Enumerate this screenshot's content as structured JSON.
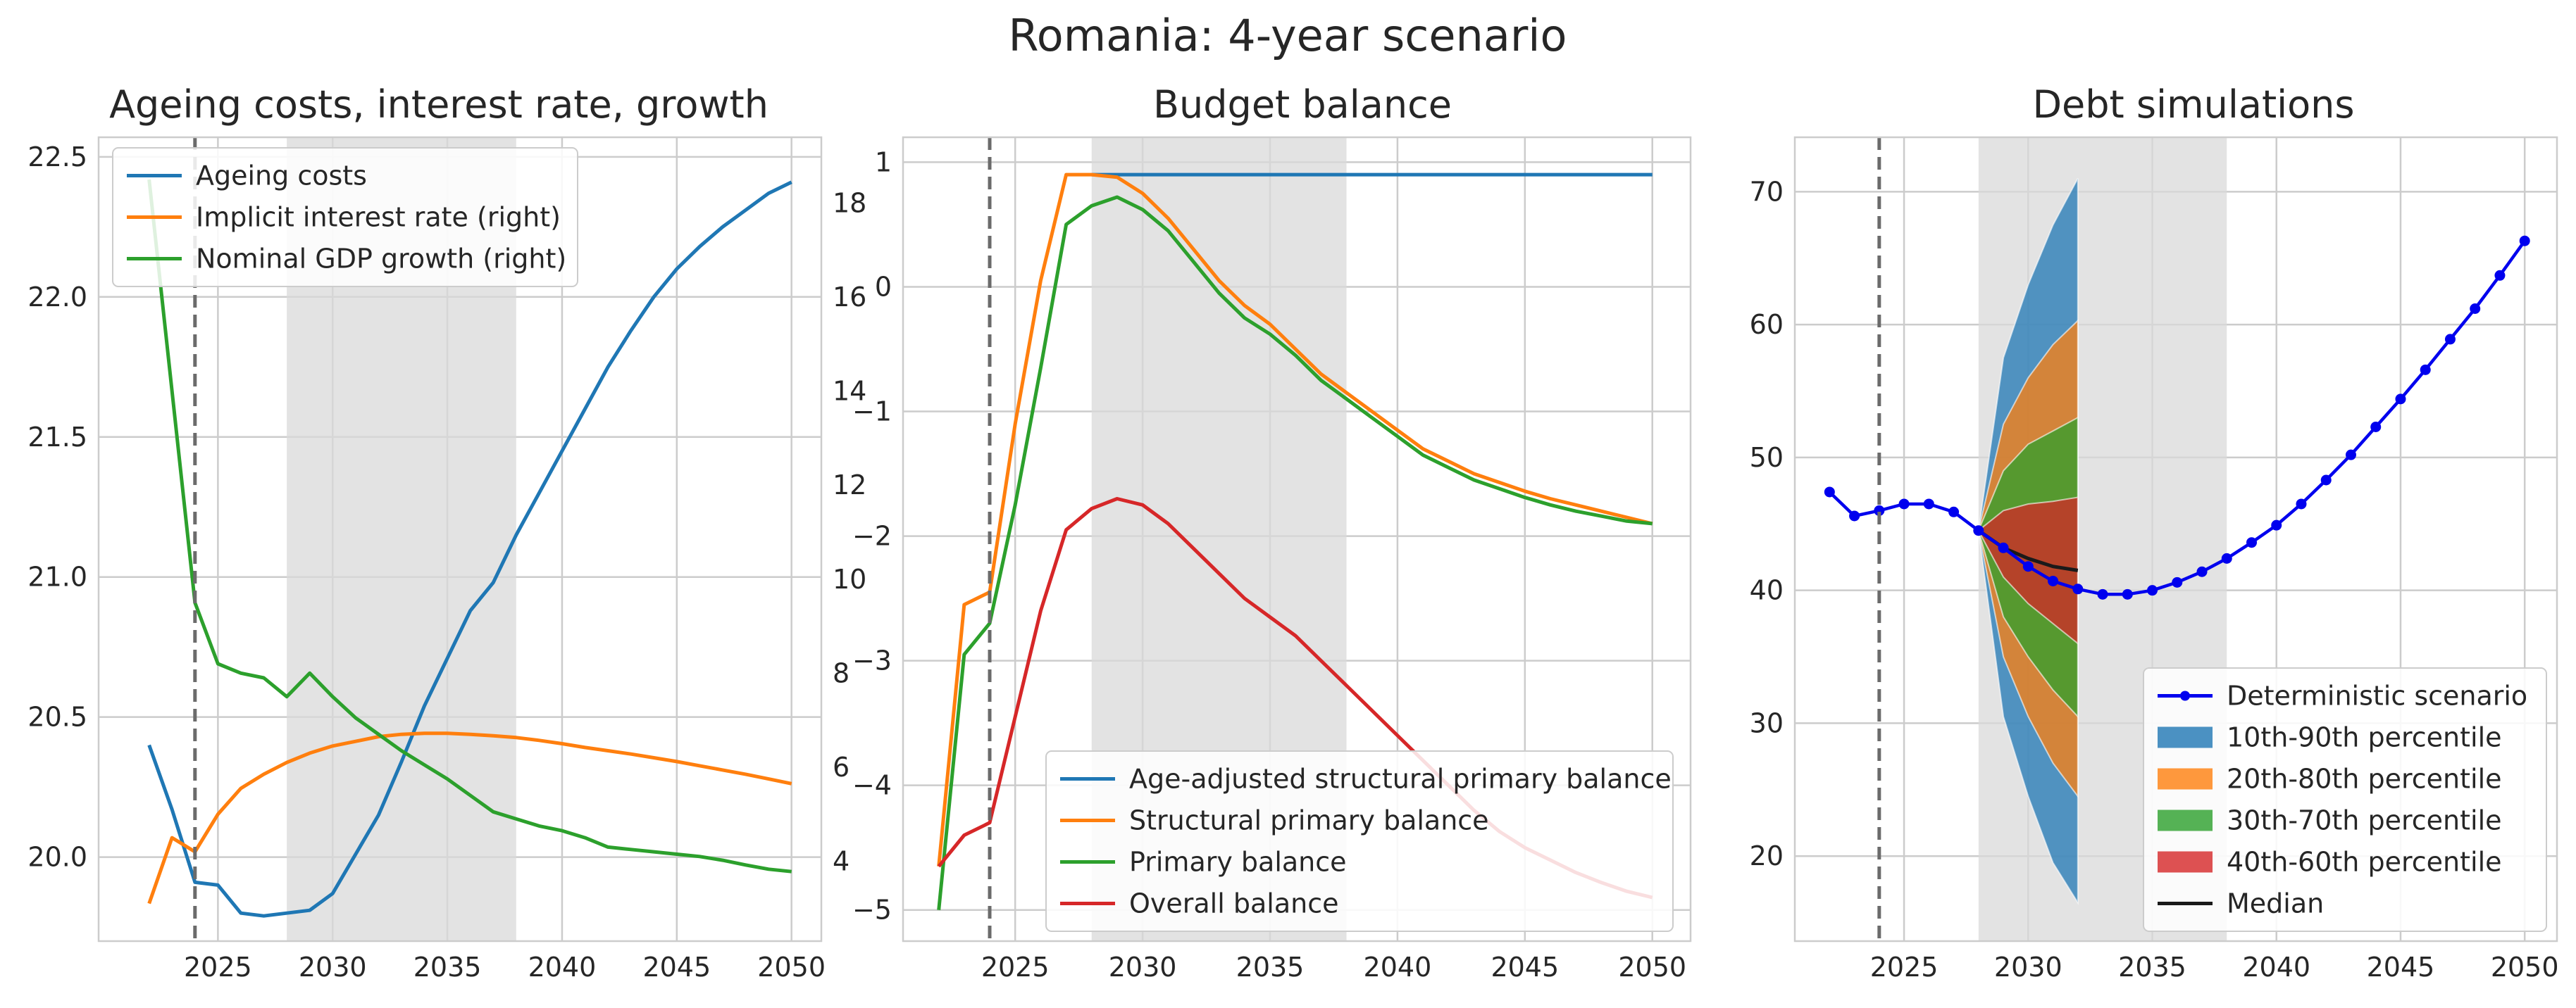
{
  "title": "Romania: 4-year scenario",
  "colors": {
    "blue": "#1f77b4",
    "orange": "#ff7f0e",
    "green": "#2ca02c",
    "red": "#d62728",
    "black": "#1a1a1a",
    "det": "#0000ee",
    "shade": "#d9d9d9",
    "vline": "#6b6b6b"
  },
  "chart_data": [
    {
      "type": "line",
      "title": "Ageing costs, interest rate, growth",
      "x": [
        2022,
        2023,
        2024,
        2025,
        2026,
        2027,
        2028,
        2029,
        2030,
        2031,
        2032,
        2033,
        2034,
        2035,
        2036,
        2037,
        2038,
        2039,
        2040,
        2041,
        2042,
        2043,
        2044,
        2045,
        2046,
        2047,
        2048,
        2049,
        2050
      ],
      "xlim": [
        2019.8,
        2051.3
      ],
      "xticks": [
        2025,
        2030,
        2035,
        2040,
        2045,
        2050
      ],
      "ylim": [
        19.7,
        22.57
      ],
      "yticks": [
        20.0,
        20.5,
        21.0,
        21.5,
        22.0,
        22.5
      ],
      "ytick_labels": [
        "20.0",
        "20.5",
        "21.0",
        "21.5",
        "22.0",
        "22.5"
      ],
      "y2lim": [
        2.3,
        19.4
      ],
      "y2ticks": [
        4,
        6,
        8,
        10,
        12,
        14,
        16,
        18
      ],
      "shade": [
        2028,
        2038
      ],
      "vline": 2024,
      "grid": true,
      "legend_position": "upper-left",
      "series": [
        {
          "name": "Ageing costs",
          "axis": "left",
          "color": "#1f77b4",
          "values": [
            20.4,
            20.17,
            19.91,
            19.9,
            19.8,
            19.79,
            19.8,
            19.81,
            19.87,
            20.01,
            20.15,
            20.34,
            20.54,
            20.71,
            20.88,
            20.98,
            21.15,
            21.3,
            21.45,
            21.6,
            21.75,
            21.88,
            22.0,
            22.1,
            22.18,
            22.25,
            22.31,
            22.37,
            22.41
          ]
        },
        {
          "name": "Implicit interest rate (right)",
          "axis": "right",
          "color": "#ff7f0e",
          "values": [
            3.1,
            4.5,
            4.2,
            5.0,
            5.55,
            5.85,
            6.1,
            6.3,
            6.45,
            6.55,
            6.65,
            6.7,
            6.72,
            6.72,
            6.7,
            6.67,
            6.63,
            6.57,
            6.5,
            6.42,
            6.35,
            6.28,
            6.2,
            6.12,
            6.03,
            5.94,
            5.85,
            5.75,
            5.65
          ]
        },
        {
          "name": "Nominal GDP growth (right)",
          "axis": "right",
          "color": "#2ca02c",
          "values": [
            18.5,
            14.0,
            9.5,
            8.2,
            8.0,
            7.9,
            7.5,
            8.0,
            7.5,
            7.05,
            6.7,
            6.35,
            6.05,
            5.75,
            5.4,
            5.05,
            4.9,
            4.75,
            4.65,
            4.5,
            4.3,
            4.25,
            4.2,
            4.15,
            4.1,
            4.02,
            3.92,
            3.83,
            3.78
          ]
        }
      ]
    },
    {
      "type": "line",
      "title": "Budget balance",
      "x": [
        2022,
        2023,
        2024,
        2025,
        2026,
        2027,
        2028,
        2029,
        2030,
        2031,
        2032,
        2033,
        2034,
        2035,
        2036,
        2037,
        2038,
        2039,
        2040,
        2041,
        2042,
        2043,
        2044,
        2045,
        2046,
        2047,
        2048,
        2049,
        2050
      ],
      "xlim": [
        2020.6,
        2051.5
      ],
      "xticks": [
        2025,
        2030,
        2035,
        2040,
        2045,
        2050
      ],
      "ylim": [
        -5.25,
        1.2
      ],
      "yticks": [
        -5,
        -4,
        -3,
        -2,
        -1,
        0,
        1
      ],
      "ytick_labels": [
        "−5",
        "−4",
        "−3",
        "−2",
        "−1",
        "0",
        "1"
      ],
      "shade": [
        2028,
        2038
      ],
      "vline": 2024,
      "grid": true,
      "legend_position": "lower-right",
      "series": [
        {
          "name": "Age-adjusted structural primary balance",
          "color": "#1f77b4",
          "values": [
            null,
            null,
            null,
            null,
            null,
            null,
            0.9,
            0.9,
            0.9,
            0.9,
            0.9,
            0.9,
            0.9,
            0.9,
            0.9,
            0.9,
            0.9,
            0.9,
            0.9,
            0.9,
            0.9,
            0.9,
            0.9,
            0.9,
            0.9,
            0.9,
            0.9,
            0.9,
            0.9
          ]
        },
        {
          "name": "Structural primary balance",
          "color": "#ff7f0e",
          "values": [
            -4.65,
            -2.55,
            -2.45,
            -1.1,
            0.05,
            0.9,
            0.9,
            0.88,
            0.75,
            0.55,
            0.3,
            0.05,
            -0.15,
            -0.3,
            -0.5,
            -0.7,
            -0.85,
            -1.0,
            -1.15,
            -1.3,
            -1.4,
            -1.5,
            -1.57,
            -1.64,
            -1.7,
            -1.75,
            -1.8,
            -1.85,
            -1.9
          ]
        },
        {
          "name": "Primary balance",
          "color": "#2ca02c",
          "values": [
            -5.0,
            -2.95,
            -2.7,
            -1.75,
            -0.65,
            0.5,
            0.65,
            0.72,
            0.62,
            0.45,
            0.2,
            -0.05,
            -0.25,
            -0.38,
            -0.55,
            -0.75,
            -0.9,
            -1.05,
            -1.2,
            -1.35,
            -1.45,
            -1.55,
            -1.62,
            -1.69,
            -1.75,
            -1.8,
            -1.84,
            -1.88,
            -1.9
          ]
        },
        {
          "name": "Overall balance",
          "color": "#d62728",
          "values": [
            -4.65,
            -4.4,
            -4.3,
            -3.45,
            -2.6,
            -1.95,
            -1.78,
            -1.7,
            -1.75,
            -1.9,
            -2.1,
            -2.3,
            -2.5,
            -2.65,
            -2.8,
            -3.0,
            -3.2,
            -3.4,
            -3.6,
            -3.8,
            -4.0,
            -4.2,
            -4.37,
            -4.5,
            -4.6,
            -4.7,
            -4.78,
            -4.85,
            -4.9
          ]
        }
      ]
    },
    {
      "type": "area",
      "title": "Debt simulations",
      "x": [
        2022,
        2023,
        2024,
        2025,
        2026,
        2027,
        2028,
        2029,
        2030,
        2031,
        2032,
        2033,
        2034,
        2035,
        2036,
        2037,
        2038,
        2039,
        2040,
        2041,
        2042,
        2043,
        2044,
        2045,
        2046,
        2047,
        2048,
        2049,
        2050
      ],
      "xlim": [
        2020.6,
        2051.3
      ],
      "xticks": [
        2025,
        2030,
        2035,
        2040,
        2045,
        2050
      ],
      "ylim": [
        13.6,
        74.1
      ],
      "yticks": [
        20,
        30,
        40,
        50,
        60,
        70
      ],
      "ytick_labels": [
        "20",
        "30",
        "40",
        "50",
        "60",
        "70"
      ],
      "shade": [
        2028,
        2038
      ],
      "vline": 2024,
      "grid": true,
      "legend_position": "lower-right",
      "fan_x": [
        2028,
        2029,
        2030,
        2031,
        2032
      ],
      "fans": [
        {
          "name": "10th-90th percentile",
          "color": "#1f77b4",
          "upper": [
            44.5,
            57.5,
            63.0,
            67.5,
            71.0
          ],
          "lower": [
            44.5,
            30.5,
            24.5,
            19.5,
            16.5
          ]
        },
        {
          "name": "20th-80th percentile",
          "color": "#ff7f0e",
          "upper": [
            44.5,
            52.5,
            56.0,
            58.5,
            60.3
          ],
          "lower": [
            44.5,
            35.0,
            30.5,
            27.0,
            24.5
          ]
        },
        {
          "name": "30th-70th percentile",
          "color": "#2ca02c",
          "upper": [
            44.5,
            49.0,
            51.0,
            52.0,
            53.0
          ],
          "lower": [
            44.5,
            38.0,
            35.0,
            32.5,
            30.5
          ]
        },
        {
          "name": "40th-60th percentile",
          "color": "#d62728",
          "upper": [
            44.5,
            46.0,
            46.5,
            46.7,
            47.0
          ],
          "lower": [
            44.5,
            41.0,
            39.0,
            37.5,
            36.0
          ]
        }
      ],
      "median": {
        "name": "Median",
        "color": "#1a1a1a",
        "x": [
          2028,
          2029,
          2030,
          2031,
          2032
        ],
        "values": [
          44.5,
          43.2,
          42.4,
          41.8,
          41.5
        ]
      },
      "deterministic": {
        "name": "Deterministic scenario",
        "color": "#0000ee",
        "values": [
          47.4,
          45.6,
          46.0,
          46.5,
          46.5,
          45.9,
          44.5,
          43.2,
          41.8,
          40.7,
          40.1,
          39.7,
          39.7,
          40.0,
          40.6,
          41.4,
          42.4,
          43.6,
          44.9,
          46.5,
          48.3,
          50.2,
          52.3,
          54.4,
          56.6,
          58.9,
          61.2,
          63.7,
          66.3
        ]
      }
    }
  ]
}
